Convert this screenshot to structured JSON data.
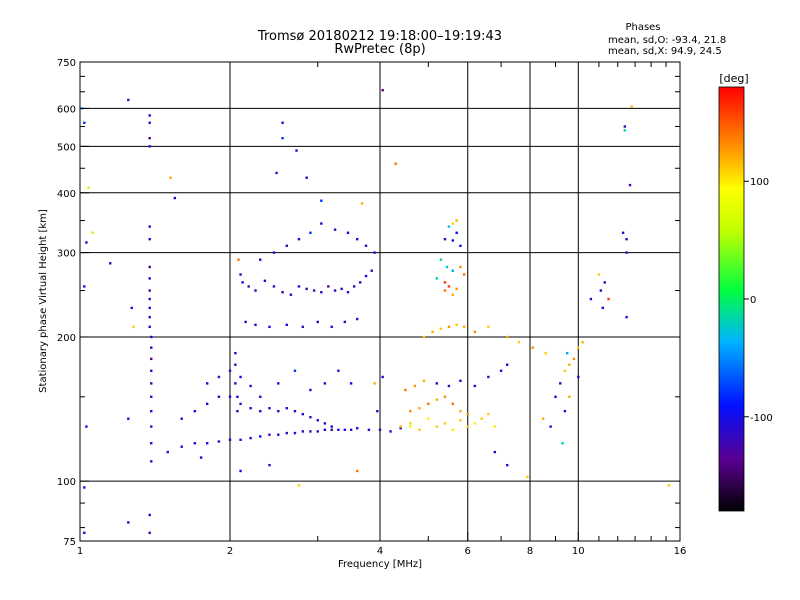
{
  "chart_data": {
    "type": "scatter",
    "title": "Tromsø 20180212 19:18:00–19:19:43",
    "subtitle": "RwPretec (8p)",
    "stats": {
      "heading": "Phases",
      "line_o": "mean, sd,O: -93.4, 21.8",
      "line_x": "mean, sd,X:  94.9, 24.5"
    },
    "xlabel": "Frequency [MHz]",
    "ylabel": "Stationary phase Virtual Height [km]",
    "x_scale": "log",
    "y_scale": "log",
    "xlim": [
      1,
      16
    ],
    "ylim": [
      75,
      750
    ],
    "x_ticks": [
      {
        "v": 1,
        "label": "1"
      },
      {
        "v": 2,
        "label": "2"
      },
      {
        "v": 4,
        "label": "4"
      },
      {
        "v": 6,
        "label": "6"
      },
      {
        "v": 8,
        "label": "8"
      },
      {
        "v": 10,
        "label": "10"
      },
      {
        "v": 16,
        "label": "16"
      }
    ],
    "x_grid": [
      2,
      4,
      6,
      8,
      10
    ],
    "y_ticks": [
      {
        "v": 75,
        "label": "75"
      },
      {
        "v": 100,
        "label": "100"
      },
      {
        "v": 200,
        "label": "200"
      },
      {
        "v": 300,
        "label": "300"
      },
      {
        "v": 400,
        "label": "400"
      },
      {
        "v": 500,
        "label": "500"
      },
      {
        "v": 600,
        "label": "600"
      },
      {
        "v": 750,
        "label": "750"
      }
    ],
    "y_grid": [
      100,
      200,
      300,
      400,
      500,
      600
    ],
    "grid": true,
    "colorbar": {
      "label": "[deg]",
      "range": [
        -180,
        180
      ],
      "ticks": [
        {
          "v": 100,
          "label": "100"
        },
        {
          "v": 0,
          "label": "0"
        },
        {
          "v": -100,
          "label": "-100"
        }
      ]
    },
    "points": [
      [
        1.02,
        255,
        -110
      ],
      [
        1.03,
        315,
        -110
      ],
      [
        1.01,
        600,
        -40
      ],
      [
        1.02,
        560,
        -80
      ],
      [
        1.04,
        410,
        60
      ],
      [
        1.06,
        330,
        60
      ],
      [
        1.02,
        97,
        -100
      ],
      [
        1.02,
        78,
        -110
      ],
      [
        1.03,
        130,
        -100
      ],
      [
        1.25,
        625,
        -120
      ],
      [
        1.38,
        580,
        -110
      ],
      [
        1.38,
        560,
        -120
      ],
      [
        1.38,
        520,
        -140
      ],
      [
        1.38,
        500,
        -100
      ],
      [
        1.38,
        340,
        -120
      ],
      [
        1.38,
        320,
        -120
      ],
      [
        1.38,
        280,
        -140
      ],
      [
        1.38,
        265,
        -120
      ],
      [
        1.38,
        250,
        -130
      ],
      [
        1.38,
        240,
        -120
      ],
      [
        1.38,
        230,
        -110
      ],
      [
        1.38,
        220,
        -110
      ],
      [
        1.38,
        210,
        -120
      ],
      [
        1.39,
        200,
        -110
      ],
      [
        1.39,
        190,
        -120
      ],
      [
        1.39,
        180,
        -130
      ],
      [
        1.39,
        170,
        -110
      ],
      [
        1.39,
        160,
        -120
      ],
      [
        1.39,
        150,
        -120
      ],
      [
        1.39,
        140,
        -100
      ],
      [
        1.39,
        130,
        -120
      ],
      [
        1.39,
        120,
        -110
      ],
      [
        1.39,
        110,
        -120
      ],
      [
        1.38,
        85,
        -110
      ],
      [
        1.38,
        78,
        -130
      ],
      [
        1.25,
        82,
        -110
      ],
      [
        1.25,
        135,
        -110
      ],
      [
        1.27,
        230,
        -100
      ],
      [
        1.28,
        210,
        110
      ],
      [
        1.52,
        430,
        120
      ],
      [
        1.55,
        390,
        -110
      ],
      [
        1.15,
        285,
        -120
      ],
      [
        2.55,
        560,
        -100
      ],
      [
        2.55,
        520,
        -80
      ],
      [
        2.72,
        490,
        -110
      ],
      [
        3.68,
        380,
        120
      ],
      [
        3.05,
        385,
        -80
      ],
      [
        4.05,
        655,
        -140
      ],
      [
        4.3,
        460,
        140
      ],
      [
        2.48,
        440,
        -120
      ],
      [
        2.85,
        430,
        -110
      ],
      [
        12.4,
        540,
        -20
      ],
      [
        12.4,
        550,
        -120
      ],
      [
        12.7,
        415,
        -130
      ],
      [
        12.8,
        605,
        120
      ],
      [
        12.5,
        320,
        -120
      ],
      [
        12.5,
        300,
        -120
      ],
      [
        12.3,
        330,
        -110
      ],
      [
        2.08,
        290,
        140
      ],
      [
        2.1,
        270,
        -110
      ],
      [
        2.12,
        260,
        -100
      ],
      [
        2.18,
        255,
        -120
      ],
      [
        2.25,
        250,
        -120
      ],
      [
        2.35,
        262,
        -110
      ],
      [
        2.45,
        255,
        -120
      ],
      [
        2.55,
        248,
        -130
      ],
      [
        2.65,
        245,
        -110
      ],
      [
        2.75,
        255,
        -100
      ],
      [
        2.85,
        252,
        -120
      ],
      [
        2.95,
        250,
        -120
      ],
      [
        3.05,
        248,
        -110
      ],
      [
        3.15,
        255,
        -130
      ],
      [
        3.25,
        250,
        -110
      ],
      [
        3.35,
        252,
        -120
      ],
      [
        3.45,
        248,
        -100
      ],
      [
        3.55,
        255,
        -120
      ],
      [
        3.65,
        260,
        -110
      ],
      [
        3.75,
        268,
        -100
      ],
      [
        3.85,
        275,
        -120
      ],
      [
        2.3,
        290,
        -110
      ],
      [
        2.45,
        300,
        -110
      ],
      [
        2.6,
        310,
        -120
      ],
      [
        2.75,
        320,
        -110
      ],
      [
        2.9,
        330,
        -80
      ],
      [
        3.05,
        345,
        -110
      ],
      [
        3.25,
        335,
        -120
      ],
      [
        3.45,
        330,
        -100
      ],
      [
        3.6,
        320,
        -110
      ],
      [
        3.75,
        310,
        -120
      ],
      [
        3.9,
        300,
        -100
      ],
      [
        2.15,
        215,
        -110
      ],
      [
        2.25,
        212,
        -120
      ],
      [
        2.4,
        210,
        -100
      ],
      [
        2.6,
        212,
        -110
      ],
      [
        2.8,
        210,
        -120
      ],
      [
        3.0,
        215,
        -110
      ],
      [
        3.2,
        210,
        -100
      ],
      [
        3.4,
        215,
        -120
      ],
      [
        3.6,
        218,
        -110
      ],
      [
        1.5,
        115,
        -110
      ],
      [
        1.6,
        118,
        -120
      ],
      [
        1.7,
        120,
        -110
      ],
      [
        1.8,
        120,
        -100
      ],
      [
        1.9,
        121,
        -120
      ],
      [
        2.0,
        122,
        -110
      ],
      [
        2.1,
        122,
        -120
      ],
      [
        2.2,
        123,
        -110
      ],
      [
        2.3,
        124,
        -100
      ],
      [
        2.4,
        125,
        -120
      ],
      [
        2.5,
        125,
        -110
      ],
      [
        2.6,
        126,
        -120
      ],
      [
        2.7,
        126,
        -100
      ],
      [
        2.8,
        127,
        -110
      ],
      [
        2.9,
        127,
        -120
      ],
      [
        3.0,
        127,
        -120
      ],
      [
        3.1,
        128,
        -110
      ],
      [
        3.2,
        128,
        -120
      ],
      [
        3.3,
        128,
        -110
      ],
      [
        3.4,
        128,
        -100
      ],
      [
        3.5,
        128,
        -120
      ],
      [
        3.6,
        129,
        -110
      ],
      [
        3.8,
        128,
        -110
      ],
      [
        4.0,
        128,
        -120
      ],
      [
        4.2,
        127,
        -100
      ],
      [
        4.4,
        129,
        -110
      ],
      [
        4.6,
        130,
        80
      ],
      [
        1.6,
        135,
        -110
      ],
      [
        1.7,
        140,
        -100
      ],
      [
        1.8,
        145,
        -110
      ],
      [
        1.9,
        150,
        -120
      ],
      [
        2.0,
        150,
        -110
      ],
      [
        2.1,
        145,
        -120
      ],
      [
        2.2,
        142,
        -110
      ],
      [
        2.3,
        140,
        -100
      ],
      [
        2.4,
        142,
        -110
      ],
      [
        2.5,
        140,
        -120
      ],
      [
        2.6,
        142,
        -110
      ],
      [
        2.7,
        140,
        -100
      ],
      [
        2.8,
        138,
        -110
      ],
      [
        2.9,
        136,
        -120
      ],
      [
        3.0,
        134,
        -110
      ],
      [
        3.1,
        132,
        -120
      ],
      [
        3.2,
        130,
        -110
      ],
      [
        1.8,
        160,
        -110
      ],
      [
        1.9,
        165,
        -120
      ],
      [
        2.0,
        170,
        -110
      ],
      [
        2.1,
        165,
        -100
      ],
      [
        2.2,
        158,
        -120
      ],
      [
        2.3,
        150,
        -110
      ],
      [
        2.5,
        160,
        -100
      ],
      [
        2.7,
        170,
        -80
      ],
      [
        2.9,
        155,
        -110
      ],
      [
        3.1,
        160,
        -120
      ],
      [
        3.3,
        170,
        -110
      ],
      [
        3.5,
        160,
        -100
      ],
      [
        2.05,
        185,
        -110
      ],
      [
        2.05,
        175,
        -120
      ],
      [
        2.05,
        160,
        -110
      ],
      [
        2.07,
        150,
        -110
      ],
      [
        2.07,
        140,
        -120
      ],
      [
        3.9,
        160,
        120
      ],
      [
        4.05,
        165,
        -110
      ],
      [
        3.95,
        140,
        -120
      ],
      [
        4.5,
        155,
        140
      ],
      [
        4.7,
        158,
        130
      ],
      [
        4.9,
        162,
        120
      ],
      [
        5.2,
        160,
        -110
      ],
      [
        5.5,
        158,
        -120
      ],
      [
        5.8,
        162,
        -100
      ],
      [
        6.2,
        158,
        -110
      ],
      [
        6.6,
        165,
        -120
      ],
      [
        7.0,
        170,
        -100
      ],
      [
        7.2,
        175,
        -110
      ],
      [
        4.4,
        130,
        120
      ],
      [
        4.6,
        132,
        110
      ],
      [
        4.8,
        128,
        110
      ],
      [
        5.0,
        135,
        100
      ],
      [
        5.2,
        130,
        110
      ],
      [
        5.4,
        132,
        110
      ],
      [
        5.6,
        128,
        100
      ],
      [
        5.8,
        134,
        110
      ],
      [
        6.0,
        130,
        110
      ],
      [
        6.2,
        132,
        100
      ],
      [
        6.4,
        135,
        110
      ],
      [
        6.6,
        138,
        110
      ],
      [
        6.8,
        130,
        100
      ],
      [
        4.6,
        140,
        130
      ],
      [
        4.8,
        142,
        120
      ],
      [
        5.0,
        145,
        140
      ],
      [
        5.2,
        148,
        120
      ],
      [
        5.4,
        150,
        130
      ],
      [
        5.6,
        145,
        140
      ],
      [
        5.8,
        140,
        120
      ],
      [
        6.0,
        138,
        130
      ],
      [
        4.9,
        200,
        110
      ],
      [
        5.1,
        205,
        120
      ],
      [
        5.3,
        208,
        110
      ],
      [
        5.5,
        210,
        130
      ],
      [
        5.7,
        212,
        110
      ],
      [
        5.9,
        210,
        120
      ],
      [
        6.2,
        205,
        130
      ],
      [
        6.6,
        210,
        110
      ],
      [
        7.2,
        200,
        120
      ],
      [
        7.6,
        195,
        110
      ],
      [
        8.1,
        190,
        130
      ],
      [
        8.6,
        185,
        110
      ],
      [
        5.4,
        250,
        140
      ],
      [
        5.5,
        255,
        160
      ],
      [
        5.6,
        245,
        120
      ],
      [
        5.7,
        252,
        130
      ],
      [
        5.4,
        320,
        -110
      ],
      [
        5.6,
        318,
        -100
      ],
      [
        5.7,
        330,
        -90
      ],
      [
        5.8,
        310,
        -100
      ],
      [
        5.5,
        340,
        -30
      ],
      [
        5.6,
        345,
        110
      ],
      [
        5.7,
        350,
        120
      ],
      [
        5.8,
        280,
        130
      ],
      [
        5.9,
        270,
        140
      ],
      [
        5.3,
        290,
        -20
      ],
      [
        5.45,
        280,
        -30
      ],
      [
        5.6,
        275,
        -40
      ],
      [
        5.2,
        265,
        -20
      ],
      [
        5.4,
        260,
        160
      ],
      [
        9.2,
        160,
        -110
      ],
      [
        9.4,
        170,
        110
      ],
      [
        9.6,
        175,
        120
      ],
      [
        9.8,
        180,
        130
      ],
      [
        10.0,
        190,
        110
      ],
      [
        10.2,
        195,
        120
      ],
      [
        9.5,
        185,
        -40
      ],
      [
        10.0,
        165,
        -100
      ],
      [
        9.6,
        150,
        120
      ],
      [
        9.4,
        140,
        -110
      ],
      [
        9.3,
        120,
        -20
      ],
      [
        8.8,
        130,
        -110
      ],
      [
        8.5,
        135,
        120
      ],
      [
        9.0,
        150,
        -110
      ],
      [
        11.3,
        260,
        -110
      ],
      [
        11.1,
        250,
        -110
      ],
      [
        11.5,
        240,
        160
      ],
      [
        11.0,
        270,
        110
      ],
      [
        10.6,
        240,
        -120
      ],
      [
        11.2,
        230,
        -110
      ],
      [
        12.5,
        220,
        -100
      ],
      [
        15.2,
        98,
        110
      ],
      [
        7.9,
        102,
        110
      ],
      [
        2.75,
        98,
        110
      ],
      [
        3.6,
        105,
        140
      ],
      [
        2.4,
        108,
        -120
      ],
      [
        1.75,
        112,
        -110
      ],
      [
        2.1,
        105,
        -100
      ],
      [
        7.2,
        108,
        -110
      ],
      [
        6.8,
        115,
        -120
      ]
    ]
  }
}
